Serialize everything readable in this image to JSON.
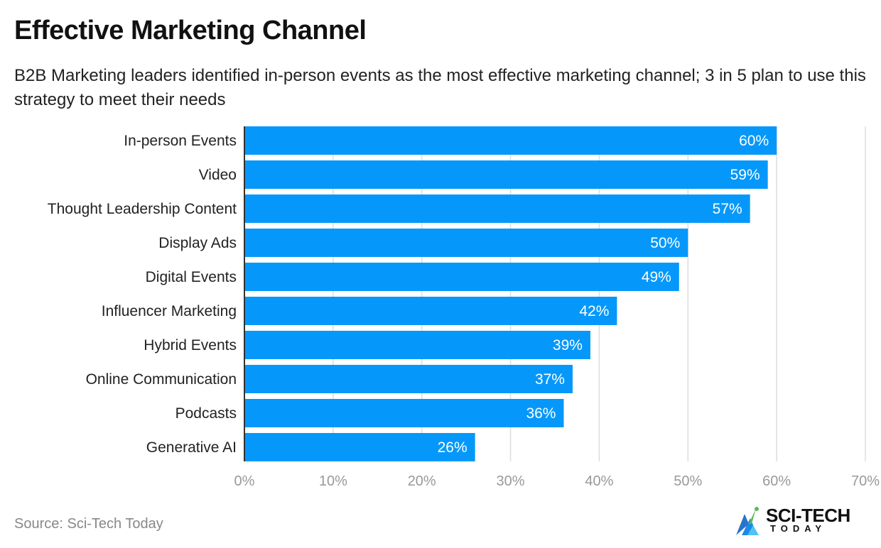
{
  "title": "Effective Marketing Channel",
  "subtitle": "B2B Marketing leaders identified in-person events as the most effective marketing channel; 3 in 5 plan to use this strategy to meet their needs",
  "source": "Source: Sci-Tech Today",
  "logo": {
    "main": "SCI-TECH",
    "sub": "TODAY"
  },
  "colors": {
    "bar": "#0598fa",
    "grid": "#dddddd",
    "axis": "#333333",
    "tick": "#999999",
    "label": "#222222",
    "value_label": "#ffffff"
  },
  "chart_data": {
    "type": "bar",
    "orientation": "horizontal",
    "categories": [
      "In-person Events",
      "Video",
      "Thought Leadership Content",
      "Display Ads",
      "Digital Events",
      "Influencer Marketing",
      "Hybrid Events",
      "Online Communication",
      "Podcasts",
      "Generative AI"
    ],
    "values": [
      60,
      59,
      57,
      50,
      49,
      42,
      39,
      37,
      36,
      26
    ],
    "value_labels": [
      "60%",
      "59%",
      "57%",
      "50%",
      "49%",
      "42%",
      "39%",
      "37%",
      "36%",
      "26%"
    ],
    "xlim": [
      0,
      70
    ],
    "xticks": [
      0,
      10,
      20,
      30,
      40,
      50,
      60,
      70
    ],
    "xtick_labels": [
      "0%",
      "10%",
      "20%",
      "30%",
      "40%",
      "50%",
      "60%",
      "70%"
    ],
    "grid": true,
    "legend": "none"
  }
}
